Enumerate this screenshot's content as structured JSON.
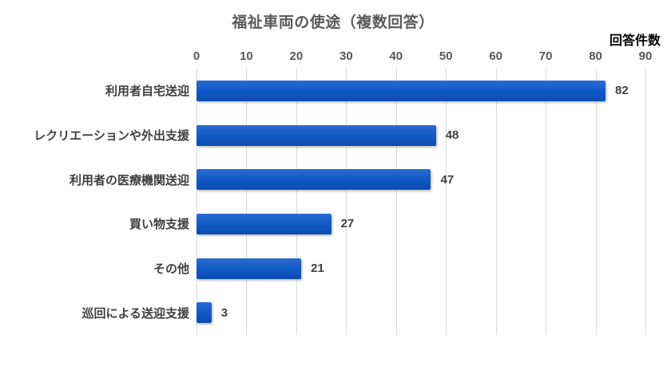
{
  "chart_data": {
    "type": "bar",
    "orientation": "horizontal",
    "title": "福祉車両の使途（複数回答）",
    "axis_unit_label": "回答件数",
    "categories": [
      "利用者自宅送迎",
      "レクリエーションや外出支援",
      "利用者の医療機関送迎",
      "買い物支援",
      "その他",
      "巡回による送迎支援"
    ],
    "values": [
      82,
      48,
      47,
      27,
      21,
      3
    ],
    "xlabel": "",
    "ylabel": "",
    "xlim": [
      0,
      90
    ],
    "ticks": [
      0,
      10,
      20,
      30,
      40,
      50,
      60,
      70,
      80,
      90
    ],
    "grid": true,
    "legend": false,
    "axis_position": "top",
    "value_labels": true
  },
  "colors": {
    "bar_top": "#2A6BD3",
    "bar_mid": "#1158C4",
    "bar_bottom": "#0B4DB2",
    "gridline": "#D9D9D9",
    "title": "#595959",
    "tick_label": "#595959",
    "category_label": "#3F3F3F",
    "value_label": "#404040",
    "unit_label": "#000000",
    "background": "#FFFFFF"
  }
}
